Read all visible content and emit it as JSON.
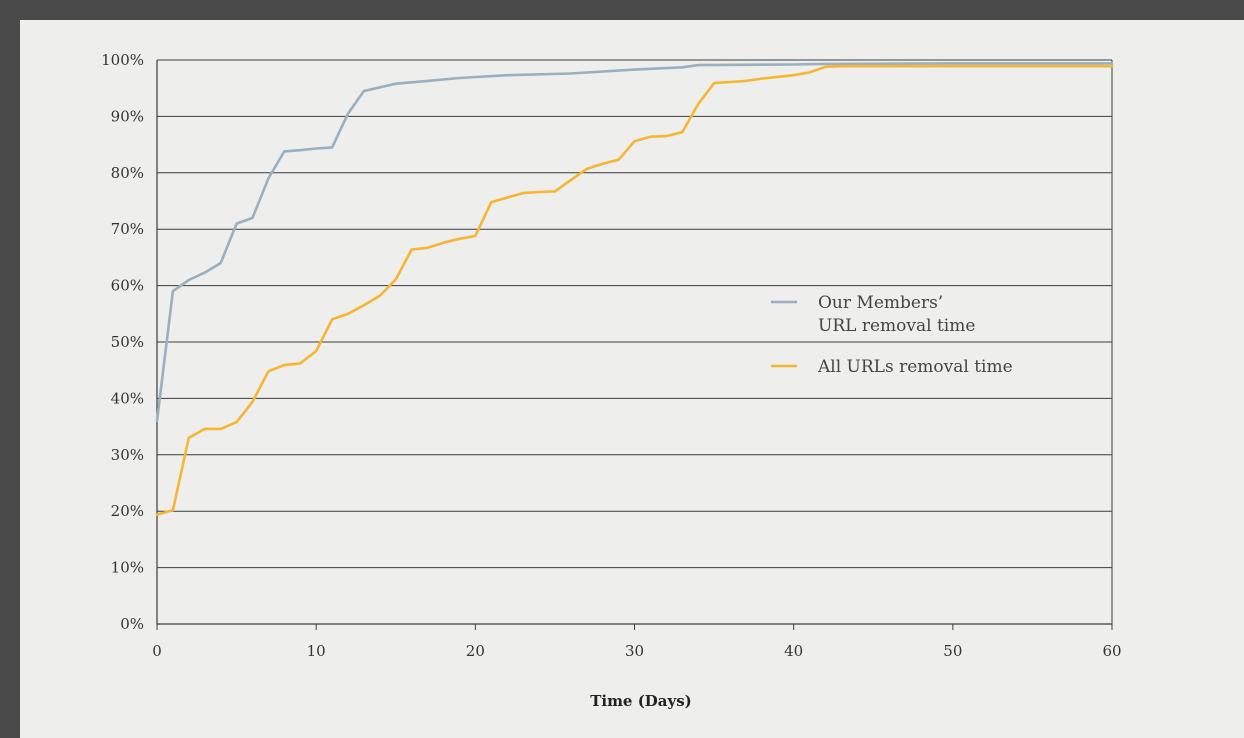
{
  "chart_data": {
    "type": "line",
    "title": "",
    "xlabel": "Time (Days)",
    "ylabel": "",
    "xlim": [
      0,
      60
    ],
    "ylim": [
      0,
      100
    ],
    "x_ticks": [
      0,
      10,
      20,
      30,
      40,
      50,
      60
    ],
    "y_ticks": [
      0,
      10,
      20,
      30,
      40,
      50,
      60,
      70,
      80,
      90,
      100
    ],
    "y_tick_format": "percent",
    "grid": "horizontal",
    "legend_position": "center-right",
    "series": [
      {
        "name": "Our Members' URL removal time",
        "color": "#98b0c0",
        "x": [
          0,
          1,
          2,
          3,
          4,
          5,
          6,
          7,
          8,
          9,
          10,
          11,
          12,
          13,
          15,
          17,
          19,
          22,
          26,
          30,
          33,
          34,
          40,
          42,
          50,
          60
        ],
        "y": [
          36,
          59,
          61,
          62.3,
          64,
          71,
          72,
          79,
          83.8,
          84,
          84.3,
          84.5,
          90.5,
          94.5,
          95.8,
          96.3,
          96.8,
          97.3,
          97.6,
          98.3,
          98.7,
          99.1,
          99.2,
          99.3,
          99.4,
          99.4
        ]
      },
      {
        "name": "All URLs removal time",
        "color": "#f6b533",
        "x": [
          0,
          1,
          2,
          3,
          4,
          5,
          6,
          7,
          8,
          9,
          10,
          11,
          12,
          13,
          14,
          15,
          16,
          17,
          18,
          19,
          20,
          21,
          22,
          23,
          24,
          25,
          26,
          27,
          28,
          29,
          30,
          31,
          32,
          33,
          34,
          35,
          36,
          37,
          38,
          39,
          40,
          41,
          42,
          43,
          50,
          60
        ],
        "y": [
          19.4,
          20.2,
          33,
          34.6,
          34.6,
          35.8,
          39.4,
          44.8,
          45.9,
          46.2,
          48.4,
          54,
          55,
          56.5,
          58.2,
          61.1,
          66.4,
          66.7,
          67.6,
          68.3,
          68.8,
          74.8,
          75.6,
          76.4,
          76.6,
          76.7,
          78.7,
          80.7,
          81.6,
          82.3,
          85.6,
          86.4,
          86.5,
          87.2,
          92.2,
          95.9,
          96.1,
          96.3,
          96.7,
          97,
          97.3,
          97.8,
          98.8,
          98.9,
          98.9,
          98.9
        ]
      }
    ],
    "legend": [
      {
        "lines": [
          "Our Members’",
          "URL removal time"
        ]
      },
      {
        "lines": [
          "All URLs removal time"
        ]
      }
    ]
  }
}
